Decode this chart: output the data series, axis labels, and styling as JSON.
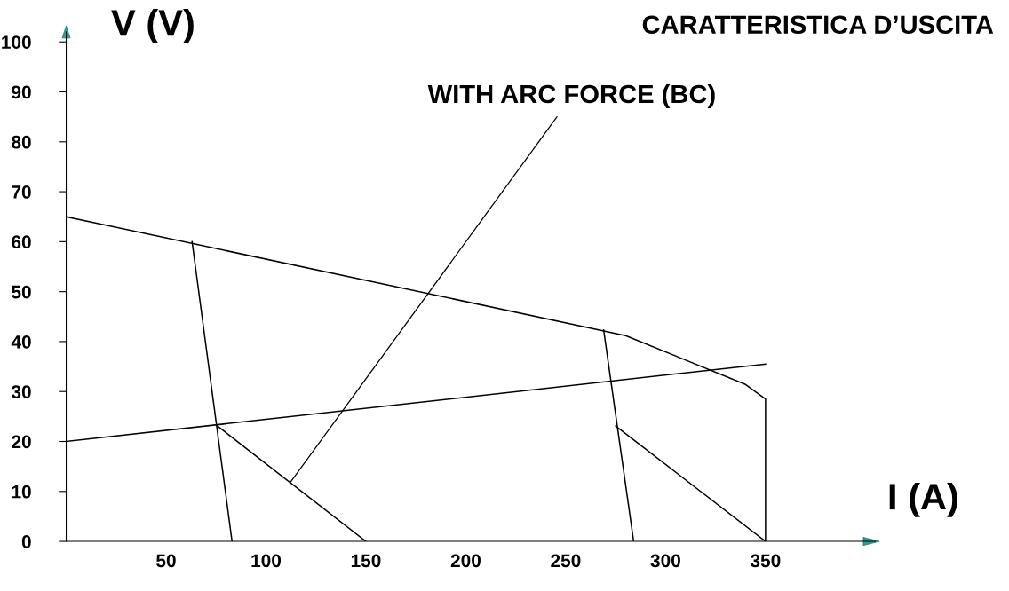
{
  "chart_data": {
    "type": "line",
    "title": "CARATTERISTICA D’USCITA",
    "xlabel": "I (A)",
    "ylabel": "V (V)",
    "series": [
      {
        "color": "#000000",
        "x": [
          0,
          280,
          340,
          350,
          350
        ],
        "values": [
          65,
          41.2,
          31.4,
          28.5,
          0
        ]
      },
      {
        "color": "#000000",
        "x": [
          0,
          350
        ],
        "values": [
          20,
          35.5
        ]
      },
      {
        "color": "#000000",
        "x": [
          63,
          83
        ],
        "values": [
          60,
          0
        ]
      },
      {
        "color": "#000000",
        "x": [
          75,
          150
        ],
        "values": [
          23.3,
          0
        ]
      },
      {
        "color": "#000000",
        "x": [
          269,
          284
        ],
        "values": [
          42.3,
          0
        ]
      },
      {
        "color": "#000000",
        "x": [
          275,
          350
        ],
        "values": [
          23.1,
          0
        ]
      }
    ],
    "annotations": [
      {
        "text": "WITH ARC FORCE (BC)",
        "x": 112,
        "y": 11.7
      }
    ],
    "xlim": [
      0,
      405
    ],
    "ylim": [
      0,
      102
    ],
    "xticks": [
      50,
      100,
      150,
      200,
      250,
      300,
      350
    ],
    "yticks": [
      0,
      10,
      20,
      30,
      40,
      50,
      60,
      70,
      80,
      90,
      100
    ],
    "grid": false,
    "legend": false
  }
}
